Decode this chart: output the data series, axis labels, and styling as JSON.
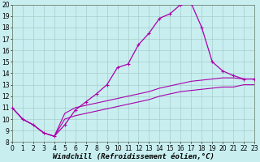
{
  "xlabel": "Windchill (Refroidissement éolien,°C)",
  "background_color": "#c8eef0",
  "grid_color": "#9ec8c0",
  "line_color": "#aa00aa",
  "xlim": [
    0,
    23
  ],
  "ylim": [
    8,
    20
  ],
  "xticks": [
    0,
    1,
    2,
    3,
    4,
    5,
    6,
    7,
    8,
    9,
    10,
    11,
    12,
    13,
    14,
    15,
    16,
    17,
    18,
    19,
    20,
    21,
    22,
    23
  ],
  "yticks": [
    8,
    9,
    10,
    11,
    12,
    13,
    14,
    15,
    16,
    17,
    18,
    19,
    20
  ],
  "xlabel_fontsize": 6.5,
  "tick_fontsize": 5.5,
  "x_main": [
    0,
    1,
    2,
    3,
    4,
    5,
    6,
    7,
    8,
    9,
    10,
    11,
    12,
    13,
    14,
    15,
    16,
    17,
    18,
    19,
    20,
    21,
    22,
    23
  ],
  "y_main": [
    11,
    10,
    9.5,
    8.8,
    8.5,
    9.5,
    10.8,
    11.5,
    12.2,
    13.0,
    14.5,
    14.8,
    16.5,
    17.5,
    18.8,
    19.2,
    20.0,
    20.1,
    18.0,
    15.0,
    14.2,
    13.8,
    13.5,
    13.5
  ],
  "y_flat1": [
    11,
    10,
    9.5,
    8.8,
    8.5,
    10.5,
    11.0,
    11.2,
    11.4,
    11.6,
    11.8,
    12.0,
    12.2,
    12.4,
    12.7,
    12.9,
    13.1,
    13.3,
    13.4,
    13.5,
    13.6,
    13.6,
    13.5,
    13.5
  ],
  "y_flat2": [
    11,
    10,
    9.5,
    8.8,
    8.5,
    10.0,
    10.3,
    10.5,
    10.7,
    10.9,
    11.1,
    11.3,
    11.5,
    11.7,
    12.0,
    12.2,
    12.4,
    12.5,
    12.6,
    12.7,
    12.8,
    12.8,
    13.0,
    13.0
  ]
}
